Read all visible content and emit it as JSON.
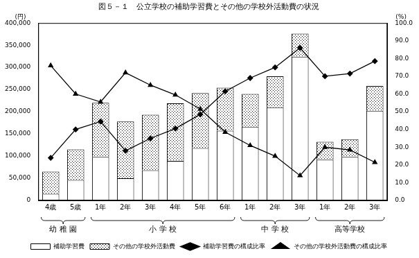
{
  "chart_data": {
    "type": "bar",
    "title": "図５－１　公立学校の補助学習費とその他の学校外活動費の状況",
    "y_label": "(円)",
    "y2_label": "(%)",
    "categories": [
      "4歳",
      "5歳",
      "1年",
      "2年",
      "3年",
      "4年",
      "5年",
      "6年",
      "1年",
      "2年",
      "3年",
      "1年",
      "2年",
      "3年"
    ],
    "groups": [
      {
        "name": "幼 稚 園",
        "count": 2
      },
      {
        "name": "小 学 校",
        "count": 6
      },
      {
        "name": "中 学 校",
        "count": 3
      },
      {
        "name": "高等学校",
        "count": 3
      }
    ],
    "stacked": true,
    "grid": false,
    "legend": "bottom",
    "ylim": [
      0,
      400000
    ],
    "yticks": [
      0,
      {
        "value": 50000,
        "label": "50,000"
      },
      {
        "value": 100000,
        "label": "100,000"
      },
      {
        "value": 150000,
        "label": "150,000"
      },
      {
        "value": 200000,
        "label": "200,000"
      },
      {
        "value": 250000,
        "label": "250,000"
      },
      {
        "value": 300000,
        "label": "300,000"
      },
      {
        "value": 350000,
        "label": "350,000"
      },
      {
        "value": 400000,
        "label": "400,000"
      }
    ],
    "y2lim": [
      0,
      100
    ],
    "y2ticks": [
      {
        "value": 0,
        "label": "0.0"
      },
      {
        "value": 10,
        "label": "10.0"
      },
      {
        "value": 20,
        "label": "20.0"
      },
      {
        "value": 30,
        "label": "30.0"
      },
      {
        "value": 40,
        "label": "40.0"
      },
      {
        "value": 50,
        "label": "50.0"
      },
      {
        "value": 60,
        "label": "60.0"
      },
      {
        "value": 70,
        "label": "70.0"
      },
      {
        "value": 80,
        "label": "80.0"
      },
      {
        "value": 90,
        "label": "90.0"
      },
      {
        "value": 100,
        "label": "100.0"
      }
    ],
    "series": [
      {
        "name": "補助学習費",
        "type": "bar",
        "color": "#ffffff",
        "values": [
          15000,
          46000,
          98000,
          50000,
          68000,
          89000,
          118000,
          157000,
          166000,
          210000,
          324000,
          92000,
          98000,
          202000
        ]
      },
      {
        "name": "その他の学校外活動費",
        "type": "bar",
        "color": "#000000",
        "values": [
          50000,
          69000,
          122000,
          128000,
          125000,
          130000,
          124000,
          97000,
          74000,
          70000,
          52000,
          40000,
          40000,
          56000
        ]
      },
      {
        "name": "補助学習費の構成比率",
        "type": "line",
        "axis": "y2",
        "color": "#000000",
        "marker": "diamond",
        "values": [
          24,
          40,
          44.5,
          28,
          35,
          40.5,
          48.5,
          61.5,
          69,
          75,
          86,
          70,
          71.5,
          78.5
        ]
      },
      {
        "name": "その他の学校外活動費の構成比率",
        "type": "line",
        "axis": "y2",
        "color": "#000000",
        "marker": "triangle",
        "values": [
          76,
          60,
          55.5,
          72,
          65,
          59.5,
          51.5,
          38.5,
          31,
          25,
          14,
          30,
          28.5,
          21.5
        ]
      }
    ]
  }
}
